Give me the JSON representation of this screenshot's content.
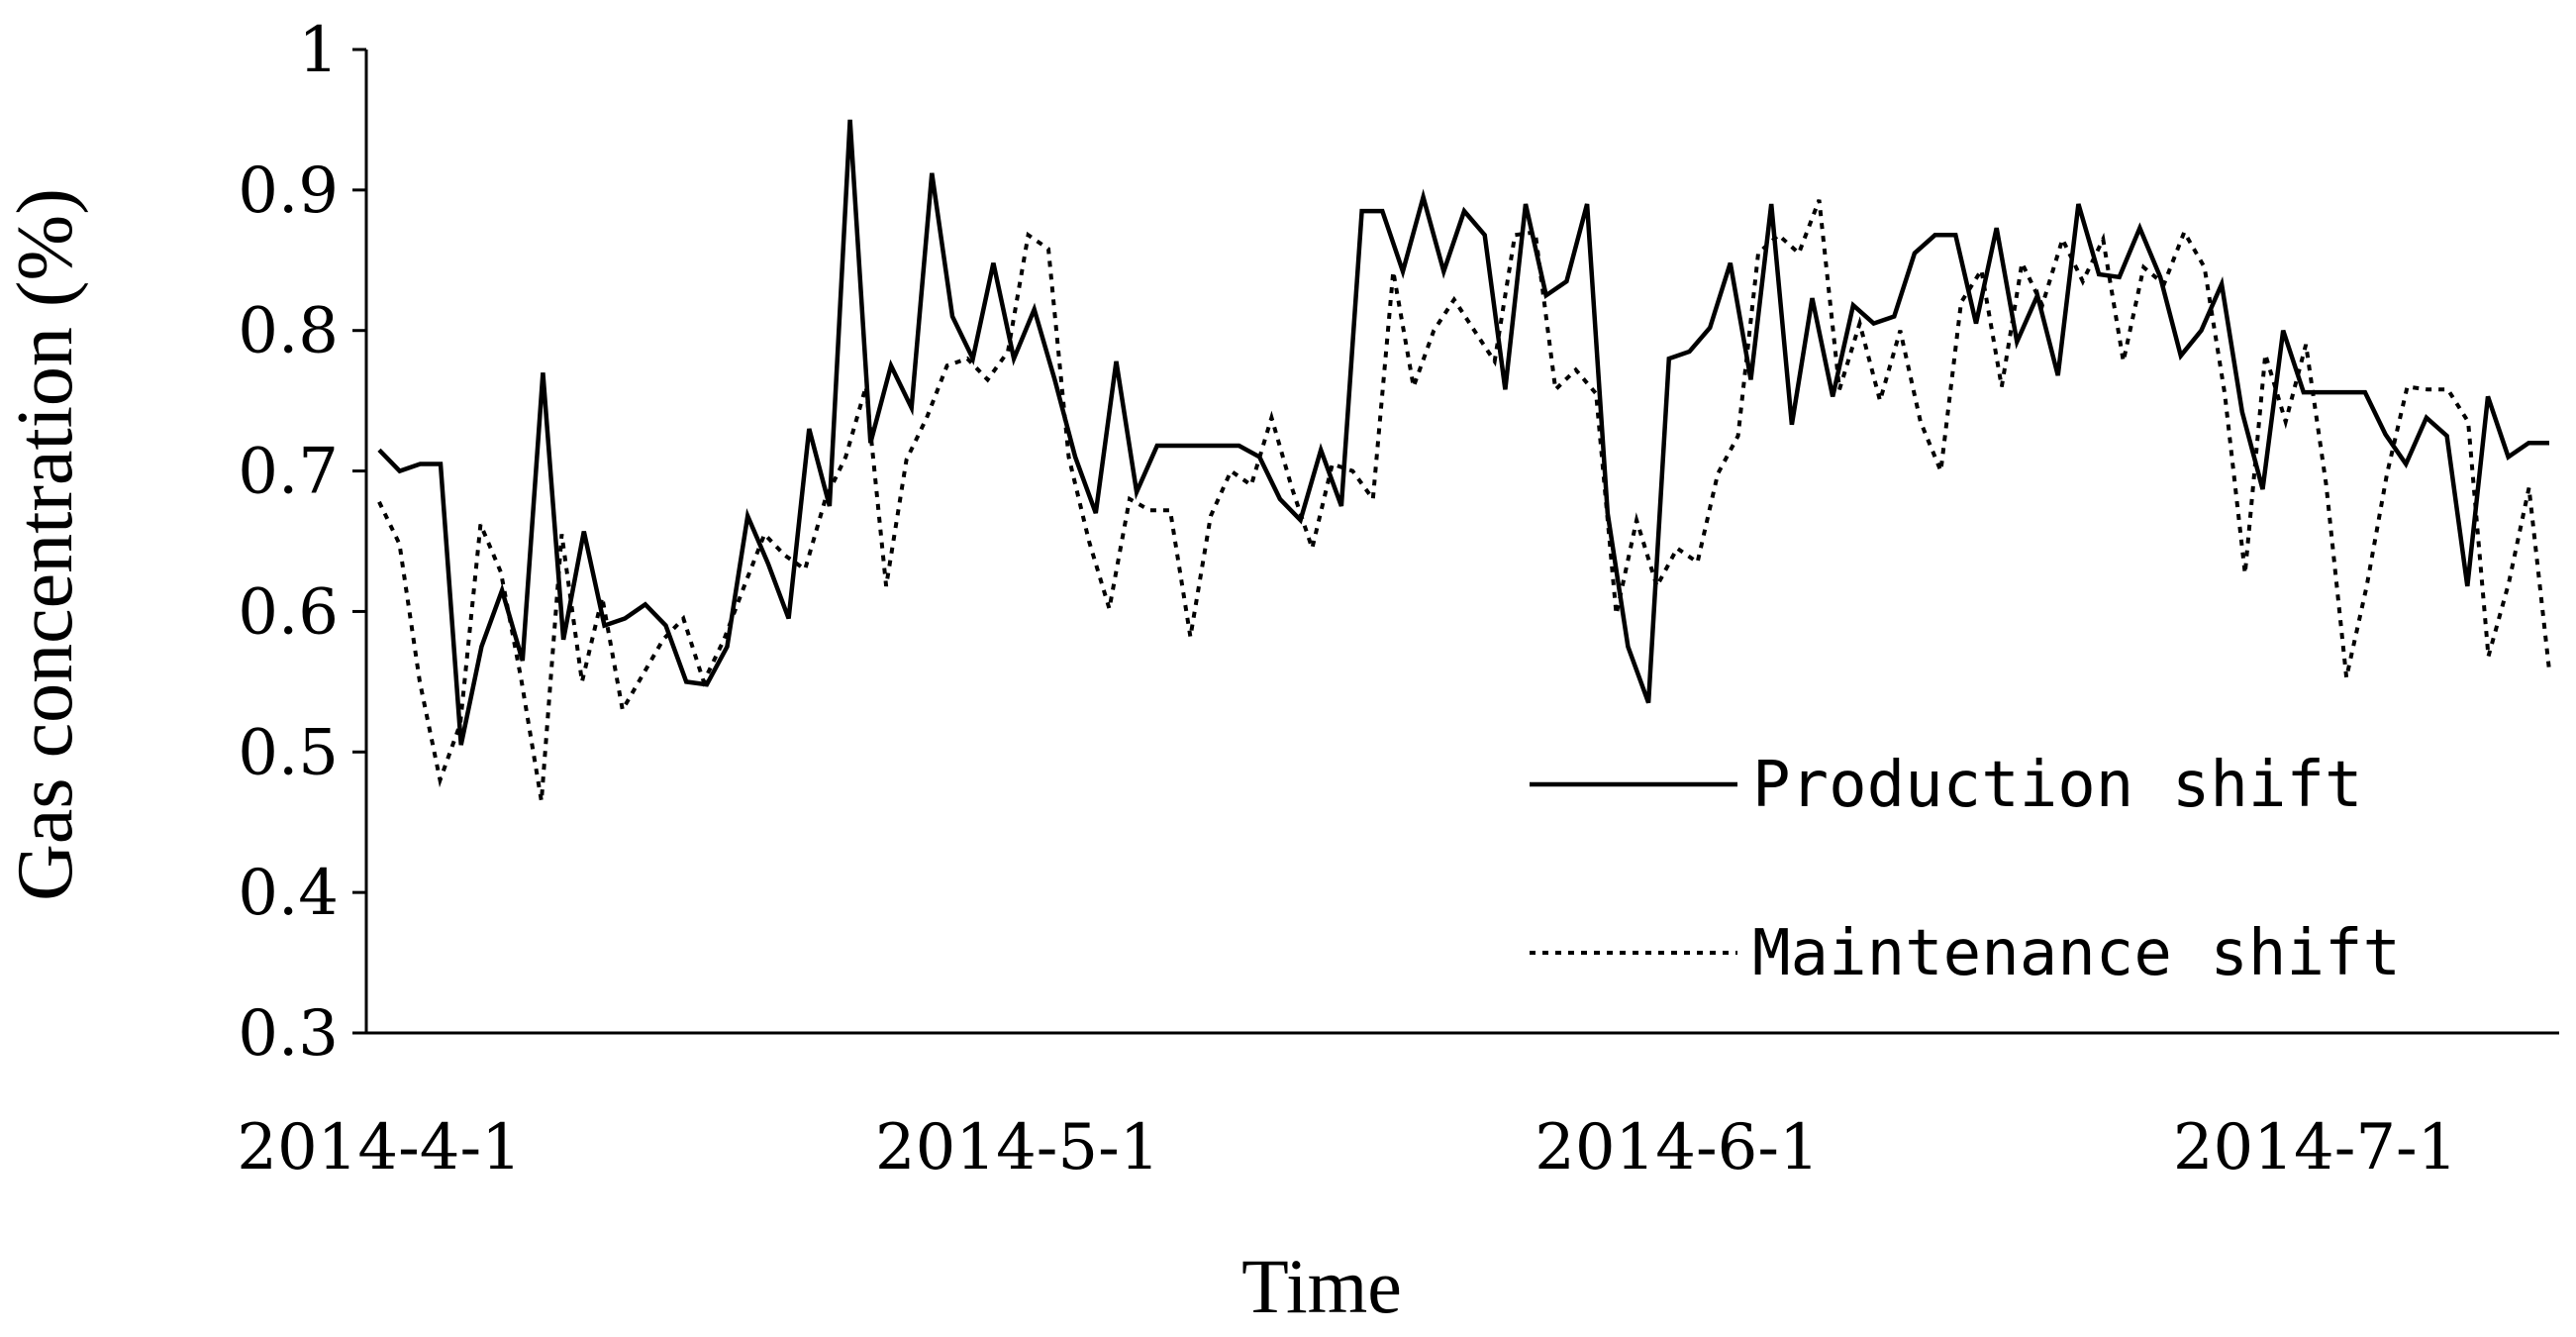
{
  "chart_data": {
    "type": "line",
    "xlabel": "Time",
    "ylabel": "Gas concentration (%)",
    "ylim": [
      0.3,
      1.0
    ],
    "yticks": [
      "0.3",
      "0.4",
      "0.5",
      "0.6",
      "0.7",
      "0.8",
      "0.9",
      "1"
    ],
    "x_start": "2014-4-1",
    "x_end": "2014-7-12",
    "xticks": [
      "2014-4-1",
      "2014-5-1",
      "2014-6-1",
      "2014-7-1"
    ],
    "grid": false,
    "legend_position": "bottom-right",
    "series": [
      {
        "name": "Production shift",
        "style": "solid",
        "color": "#000000",
        "values": [
          0.715,
          0.7,
          0.705,
          0.705,
          0.505,
          0.575,
          0.615,
          0.565,
          0.77,
          0.58,
          0.657,
          0.59,
          0.595,
          0.605,
          0.59,
          0.55,
          0.548,
          0.575,
          0.668,
          0.634,
          0.595,
          0.73,
          0.675,
          0.95,
          0.72,
          0.775,
          0.745,
          0.912,
          0.81,
          0.78,
          0.848,
          0.78,
          0.815,
          0.765,
          0.71,
          0.67,
          0.778,
          0.685,
          0.718,
          0.718,
          0.718,
          0.718,
          0.718,
          0.71,
          0.68,
          0.665,
          0.715,
          0.675,
          0.885,
          0.885,
          0.842,
          0.895,
          0.842,
          0.885,
          0.868,
          0.758,
          0.89,
          0.825,
          0.835,
          0.89,
          0.67,
          0.575,
          0.535,
          0.78,
          0.785,
          0.802,
          0.848,
          0.765,
          0.89,
          0.733,
          0.823,
          0.753,
          0.818,
          0.805,
          0.81,
          0.855,
          0.868,
          0.868,
          0.805,
          0.873,
          0.792,
          0.825,
          0.768,
          0.89,
          0.84,
          0.838,
          0.873,
          0.838,
          0.782,
          0.8,
          0.833,
          0.742,
          0.687,
          0.8,
          0.756,
          0.756,
          0.756,
          0.756,
          0.726,
          0.705,
          0.738,
          0.725,
          0.618,
          0.753,
          0.71,
          0.72,
          0.72
        ]
      },
      {
        "name": "Maintenance shift",
        "style": "dotted",
        "color": "#000000",
        "values": [
          0.678,
          0.648,
          0.55,
          0.48,
          0.52,
          0.662,
          0.628,
          0.552,
          0.465,
          0.655,
          0.55,
          0.61,
          0.53,
          0.555,
          0.58,
          0.595,
          0.55,
          0.58,
          0.618,
          0.655,
          0.64,
          0.63,
          0.68,
          0.71,
          0.76,
          0.618,
          0.708,
          0.738,
          0.775,
          0.78,
          0.765,
          0.785,
          0.868,
          0.858,
          0.71,
          0.65,
          0.602,
          0.68,
          0.672,
          0.672,
          0.582,
          0.668,
          0.7,
          0.69,
          0.738,
          0.688,
          0.645,
          0.705,
          0.7,
          0.68,
          0.842,
          0.76,
          0.8,
          0.822,
          0.8,
          0.778,
          0.868,
          0.87,
          0.758,
          0.772,
          0.755,
          0.598,
          0.665,
          0.618,
          0.645,
          0.635,
          0.698,
          0.725,
          0.855,
          0.868,
          0.855,
          0.893,
          0.758,
          0.805,
          0.75,
          0.8,
          0.735,
          0.7,
          0.82,
          0.843,
          0.76,
          0.848,
          0.818,
          0.865,
          0.835,
          0.865,
          0.778,
          0.845,
          0.833,
          0.87,
          0.845,
          0.755,
          0.627,
          0.783,
          0.735,
          0.79,
          0.69,
          0.553,
          0.618,
          0.698,
          0.76,
          0.758,
          0.758,
          0.735,
          0.568,
          0.62,
          0.688,
          0.558
        ]
      }
    ]
  }
}
